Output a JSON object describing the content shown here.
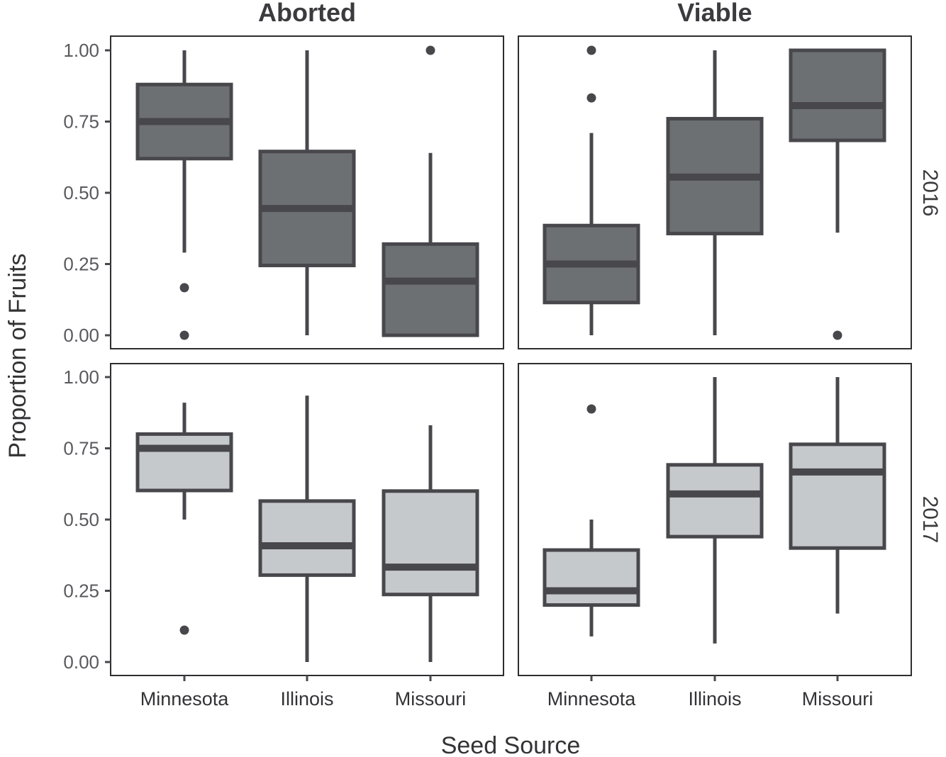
{
  "chart_data": {
    "type": "boxplot",
    "facet_columns": [
      "Aborted",
      "Viable"
    ],
    "facet_rows": [
      "2016",
      "2017"
    ],
    "categories": [
      "Minnesota",
      "Illinois",
      "Missouri"
    ],
    "xlabel": "Seed Source",
    "ylabel": "Proportion of Fruits",
    "ylim": [
      0,
      1
    ],
    "yticks": [
      "0.00",
      "0.25",
      "0.50",
      "0.75",
      "1.00"
    ],
    "grid": false,
    "colors": {
      "fill_2016": "#6d7073",
      "fill_2017": "#c6c9cc",
      "stroke": "#48474c",
      "frame": "#2e2e30",
      "text": "#3b3b3f"
    },
    "panels": [
      {
        "column": "Aborted",
        "row": "2016",
        "boxes": [
          {
            "category": "Minnesota",
            "whisker_low": 0.29,
            "q1": 0.62,
            "median": 0.75,
            "q3": 0.88,
            "whisker_high": 1.0,
            "outliers": [
              0.167,
              0.0
            ]
          },
          {
            "category": "Illinois",
            "whisker_low": 0.0,
            "q1": 0.245,
            "median": 0.445,
            "q3": 0.645,
            "whisker_high": 1.0,
            "outliers": []
          },
          {
            "category": "Missouri",
            "whisker_low": 0.0,
            "q1": 0.0,
            "median": 0.19,
            "q3": 0.32,
            "whisker_high": 0.64,
            "outliers": [
              1.0
            ]
          }
        ]
      },
      {
        "column": "Viable",
        "row": "2016",
        "boxes": [
          {
            "category": "Minnesota",
            "whisker_low": 0.0,
            "q1": 0.115,
            "median": 0.25,
            "q3": 0.385,
            "whisker_high": 0.71,
            "outliers": [
              1.0,
              0.833
            ]
          },
          {
            "category": "Illinois",
            "whisker_low": 0.0,
            "q1": 0.357,
            "median": 0.555,
            "q3": 0.76,
            "whisker_high": 1.0,
            "outliers": []
          },
          {
            "category": "Missouri",
            "whisker_low": 0.36,
            "q1": 0.684,
            "median": 0.806,
            "q3": 1.0,
            "whisker_high": 1.0,
            "outliers": [
              0.0
            ]
          }
        ]
      },
      {
        "column": "Aborted",
        "row": "2017",
        "boxes": [
          {
            "category": "Minnesota",
            "whisker_low": 0.5,
            "q1": 0.602,
            "median": 0.75,
            "q3": 0.8,
            "whisker_high": 0.91,
            "outliers": [
              0.112
            ]
          },
          {
            "category": "Illinois",
            "whisker_low": 0.0,
            "q1": 0.305,
            "median": 0.408,
            "q3": 0.565,
            "whisker_high": 0.935,
            "outliers": []
          },
          {
            "category": "Missouri",
            "whisker_low": 0.0,
            "q1": 0.237,
            "median": 0.333,
            "q3": 0.6,
            "whisker_high": 0.831,
            "outliers": []
          }
        ]
      },
      {
        "column": "Viable",
        "row": "2017",
        "boxes": [
          {
            "category": "Minnesota",
            "whisker_low": 0.09,
            "q1": 0.2,
            "median": 0.25,
            "q3": 0.393,
            "whisker_high": 0.5,
            "outliers": [
              0.888
            ]
          },
          {
            "category": "Illinois",
            "whisker_low": 0.065,
            "q1": 0.44,
            "median": 0.59,
            "q3": 0.692,
            "whisker_high": 1.0,
            "outliers": []
          },
          {
            "category": "Missouri",
            "whisker_low": 0.17,
            "q1": 0.4,
            "median": 0.667,
            "q3": 0.764,
            "whisker_high": 1.0,
            "outliers": []
          }
        ]
      }
    ]
  }
}
